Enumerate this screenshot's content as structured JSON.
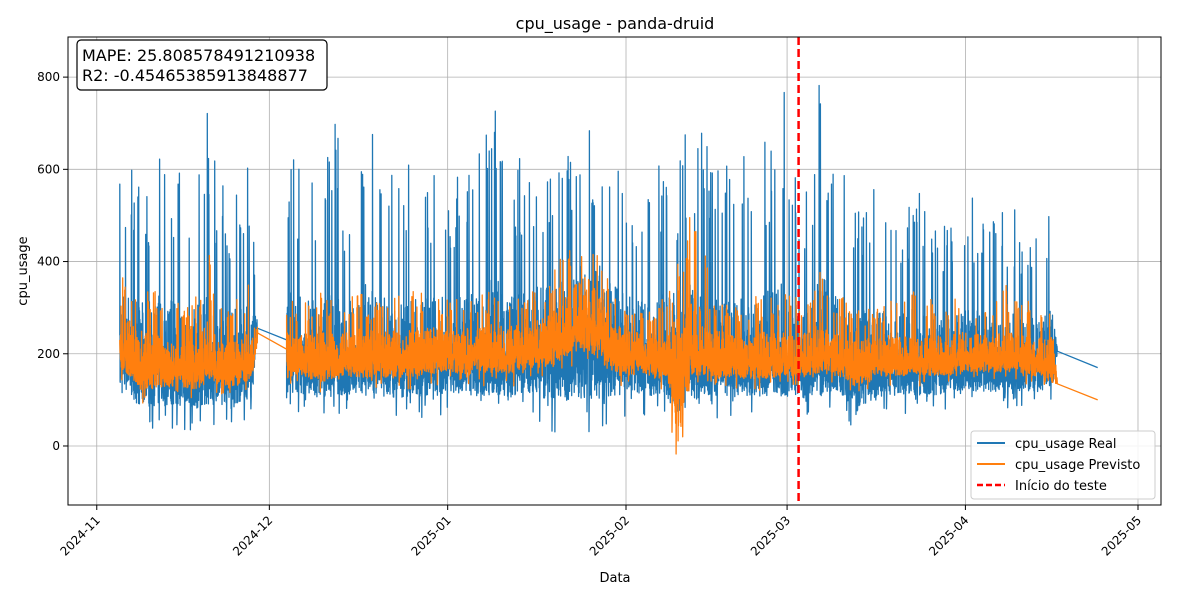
{
  "chart_data": {
    "type": "line",
    "title": "cpu_usage - panda-druid",
    "xlabel": "Data",
    "ylabel": "cpu_usage",
    "x_range": [
      "2024-10-27",
      "2025-05-05"
    ],
    "ylim": [
      -128,
      887
    ],
    "x_ticks": [
      "2024-11",
      "2024-12",
      "2025-01",
      "2025-02",
      "2025-03",
      "2025-04",
      "2025-05"
    ],
    "x_tick_dates": [
      "2024-11-01",
      "2024-12-01",
      "2025-01-01",
      "2025-02-01",
      "2025-03-01",
      "2025-04-01",
      "2025-05-01"
    ],
    "y_ticks": [
      0,
      200,
      400,
      600,
      800
    ],
    "grid": true,
    "legend_position": "bottom-right",
    "annotation": {
      "mape_label": "MAPE: 25.808578491210938",
      "r2_label": "R2: -0.45465385913848877"
    },
    "test_start": {
      "label": "Início do teste",
      "date": "2025-03-03",
      "color": "#ff0000"
    },
    "data_gaps": [
      [
        "2024-11-29",
        "2024-12-04"
      ],
      [
        "2025-04-17",
        "2025-04-24"
      ]
    ],
    "series": [
      {
        "name": "cpu_usage Real",
        "color": "#1f77b4",
        "note": "dense noisy series; approximate daily envelope (low, high, mean)",
        "points": [
          [
            "2024-11-05",
            60,
            580,
            240
          ],
          [
            "2024-11-07",
            40,
            600,
            230
          ],
          [
            "2024-11-09",
            30,
            560,
            210
          ],
          [
            "2024-11-11",
            30,
            610,
            220
          ],
          [
            "2024-11-13",
            30,
            670,
            215
          ],
          [
            "2024-11-15",
            40,
            600,
            200
          ],
          [
            "2024-11-17",
            30,
            560,
            190
          ],
          [
            "2024-11-19",
            30,
            620,
            200
          ],
          [
            "2024-11-20",
            40,
            740,
            210
          ],
          [
            "2024-11-22",
            40,
            600,
            200
          ],
          [
            "2024-11-24",
            50,
            540,
            190
          ],
          [
            "2024-11-26",
            50,
            680,
            200
          ],
          [
            "2024-11-28",
            60,
            585,
            210
          ],
          [
            "2024-11-29",
            240,
            300,
            270
          ],
          [
            "2024-12-04",
            70,
            640,
            230
          ],
          [
            "2024-12-06",
            70,
            620,
            220
          ],
          [
            "2024-12-08",
            60,
            600,
            215
          ],
          [
            "2024-12-10",
            60,
            590,
            210
          ],
          [
            "2024-12-12",
            60,
            750,
            220
          ],
          [
            "2024-12-14",
            60,
            580,
            215
          ],
          [
            "2024-12-16",
            70,
            620,
            220
          ],
          [
            "2024-12-18",
            60,
            790,
            225
          ],
          [
            "2024-12-20",
            60,
            630,
            220
          ],
          [
            "2024-12-22",
            60,
            600,
            215
          ],
          [
            "2024-12-24",
            60,
            580,
            210
          ],
          [
            "2024-12-26",
            60,
            650,
            215
          ],
          [
            "2024-12-28",
            60,
            600,
            220
          ],
          [
            "2024-12-30",
            60,
            620,
            225
          ],
          [
            "2025-01-01",
            70,
            580,
            220
          ],
          [
            "2025-01-03",
            60,
            610,
            215
          ],
          [
            "2025-01-05",
            60,
            680,
            220
          ],
          [
            "2025-01-07",
            60,
            620,
            225
          ],
          [
            "2025-01-09",
            60,
            830,
            230
          ],
          [
            "2025-01-11",
            60,
            600,
            220
          ],
          [
            "2025-01-13",
            60,
            640,
            225
          ],
          [
            "2025-01-15",
            60,
            620,
            230
          ],
          [
            "2025-01-17",
            50,
            640,
            235
          ],
          [
            "2025-01-19",
            30,
            600,
            240
          ],
          [
            "2025-01-21",
            30,
            710,
            245
          ],
          [
            "2025-01-23",
            30,
            680,
            260
          ],
          [
            "2025-01-25",
            30,
            700,
            280
          ],
          [
            "2025-01-27",
            30,
            690,
            270
          ],
          [
            "2025-01-29",
            40,
            640,
            250
          ],
          [
            "2025-01-31",
            60,
            600,
            230
          ],
          [
            "2025-02-02",
            70,
            580,
            225
          ],
          [
            "2025-02-04",
            60,
            560,
            220
          ],
          [
            "2025-02-06",
            60,
            600,
            215
          ],
          [
            "2025-02-08",
            60,
            640,
            220
          ],
          [
            "2025-02-10",
            0,
            630,
            210
          ],
          [
            "2025-02-12",
            30,
            700,
            220
          ],
          [
            "2025-02-14",
            60,
            740,
            225
          ],
          [
            "2025-02-16",
            60,
            600,
            220
          ],
          [
            "2025-02-18",
            60,
            620,
            215
          ],
          [
            "2025-02-20",
            60,
            580,
            210
          ],
          [
            "2025-02-22",
            60,
            670,
            215
          ],
          [
            "2025-02-24",
            60,
            640,
            220
          ],
          [
            "2025-02-26",
            60,
            700,
            215
          ],
          [
            "2025-02-28",
            60,
            760,
            220
          ],
          [
            "2025-03-01",
            60,
            805,
            230
          ],
          [
            "2025-03-03",
            60,
            500,
            210
          ],
          [
            "2025-03-05",
            60,
            640,
            215
          ],
          [
            "2025-03-07",
            60,
            840,
            220
          ],
          [
            "2025-03-09",
            70,
            700,
            220
          ],
          [
            "2025-03-11",
            60,
            600,
            210
          ],
          [
            "2025-03-13",
            10,
            500,
            190
          ],
          [
            "2025-03-15",
            50,
            590,
            195
          ],
          [
            "2025-03-17",
            60,
            560,
            200
          ],
          [
            "2025-03-19",
            70,
            530,
            200
          ],
          [
            "2025-03-21",
            70,
            520,
            200
          ],
          [
            "2025-03-23",
            70,
            590,
            205
          ],
          [
            "2025-03-25",
            70,
            560,
            200
          ],
          [
            "2025-03-27",
            70,
            480,
            200
          ],
          [
            "2025-03-29",
            70,
            500,
            205
          ],
          [
            "2025-03-31",
            80,
            520,
            205
          ],
          [
            "2025-04-02",
            80,
            540,
            210
          ],
          [
            "2025-04-04",
            80,
            520,
            205
          ],
          [
            "2025-04-06",
            80,
            500,
            205
          ],
          [
            "2025-04-08",
            80,
            540,
            205
          ],
          [
            "2025-04-10",
            80,
            520,
            200
          ],
          [
            "2025-04-12",
            80,
            500,
            200
          ],
          [
            "2025-04-14",
            80,
            520,
            200
          ],
          [
            "2025-04-16",
            100,
            555,
            210
          ],
          [
            "2025-04-17",
            200,
            230,
            215
          ],
          [
            "2025-04-24",
            130,
            290,
            170
          ]
        ]
      },
      {
        "name": "cpu_usage Previsto",
        "color": "#ff7f0e",
        "note": "dense noisy series; approximate daily envelope (low, high, mean)",
        "points": [
          [
            "2024-11-05",
            140,
            360,
            230
          ],
          [
            "2024-11-07",
            110,
            380,
            220
          ],
          [
            "2024-11-09",
            90,
            330,
            200
          ],
          [
            "2024-11-11",
            90,
            340,
            205
          ],
          [
            "2024-11-13",
            100,
            300,
            195
          ],
          [
            "2024-11-15",
            100,
            320,
            190
          ],
          [
            "2024-11-17",
            90,
            300,
            185
          ],
          [
            "2024-11-19",
            100,
            340,
            190
          ],
          [
            "2024-11-20",
            120,
            455,
            210
          ],
          [
            "2024-11-22",
            110,
            320,
            190
          ],
          [
            "2024-11-24",
            100,
            300,
            185
          ],
          [
            "2024-11-26",
            110,
            330,
            190
          ],
          [
            "2024-11-28",
            120,
            385,
            200
          ],
          [
            "2024-11-29",
            230,
            280,
            255
          ],
          [
            "2024-12-04",
            120,
            330,
            210
          ],
          [
            "2024-12-06",
            130,
            300,
            210
          ],
          [
            "2024-12-08",
            120,
            320,
            205
          ],
          [
            "2024-12-10",
            110,
            340,
            205
          ],
          [
            "2024-12-12",
            120,
            320,
            210
          ],
          [
            "2024-12-14",
            130,
            330,
            215
          ],
          [
            "2024-12-16",
            120,
            340,
            215
          ],
          [
            "2024-12-18",
            120,
            320,
            210
          ],
          [
            "2024-12-20",
            120,
            330,
            215
          ],
          [
            "2024-12-22",
            120,
            320,
            210
          ],
          [
            "2024-12-24",
            120,
            330,
            210
          ],
          [
            "2024-12-26",
            120,
            340,
            215
          ],
          [
            "2024-12-28",
            130,
            330,
            215
          ],
          [
            "2024-12-30",
            130,
            340,
            220
          ],
          [
            "2025-01-01",
            130,
            320,
            215
          ],
          [
            "2025-01-03",
            130,
            320,
            215
          ],
          [
            "2025-01-05",
            130,
            330,
            220
          ],
          [
            "2025-01-07",
            130,
            330,
            220
          ],
          [
            "2025-01-09",
            130,
            340,
            225
          ],
          [
            "2025-01-11",
            130,
            330,
            220
          ],
          [
            "2025-01-13",
            130,
            330,
            225
          ],
          [
            "2025-01-15",
            140,
            340,
            230
          ],
          [
            "2025-01-17",
            140,
            360,
            235
          ],
          [
            "2025-01-19",
            140,
            380,
            240
          ],
          [
            "2025-01-21",
            150,
            420,
            260
          ],
          [
            "2025-01-23",
            160,
            480,
            290
          ],
          [
            "2025-01-25",
            170,
            500,
            310
          ],
          [
            "2025-01-27",
            150,
            450,
            280
          ],
          [
            "2025-01-29",
            130,
            360,
            240
          ],
          [
            "2025-01-31",
            130,
            320,
            225
          ],
          [
            "2025-02-02",
            130,
            310,
            215
          ],
          [
            "2025-02-04",
            120,
            300,
            210
          ],
          [
            "2025-02-06",
            120,
            300,
            205
          ],
          [
            "2025-02-08",
            120,
            330,
            210
          ],
          [
            "2025-02-10",
            -80,
            400,
            200
          ],
          [
            "2025-02-12",
            100,
            545,
            230
          ],
          [
            "2025-02-14",
            120,
            480,
            230
          ],
          [
            "2025-02-16",
            120,
            330,
            210
          ],
          [
            "2025-02-18",
            120,
            320,
            210
          ],
          [
            "2025-02-20",
            120,
            310,
            205
          ],
          [
            "2025-02-22",
            120,
            320,
            205
          ],
          [
            "2025-02-24",
            120,
            330,
            210
          ],
          [
            "2025-02-26",
            120,
            320,
            205
          ],
          [
            "2025-02-28",
            130,
            340,
            210
          ],
          [
            "2025-03-01",
            130,
            330,
            210
          ],
          [
            "2025-03-03",
            120,
            320,
            205
          ],
          [
            "2025-03-05",
            130,
            340,
            210
          ],
          [
            "2025-03-07",
            130,
            430,
            215
          ],
          [
            "2025-03-09",
            130,
            340,
            210
          ],
          [
            "2025-03-11",
            120,
            320,
            200
          ],
          [
            "2025-03-13",
            100,
            290,
            190
          ],
          [
            "2025-03-15",
            110,
            310,
            195
          ],
          [
            "2025-03-17",
            120,
            320,
            200
          ],
          [
            "2025-03-19",
            130,
            330,
            205
          ],
          [
            "2025-03-21",
            130,
            320,
            205
          ],
          [
            "2025-03-23",
            130,
            360,
            210
          ],
          [
            "2025-03-25",
            130,
            330,
            205
          ],
          [
            "2025-03-27",
            130,
            320,
            205
          ],
          [
            "2025-03-29",
            130,
            320,
            205
          ],
          [
            "2025-03-31",
            140,
            330,
            210
          ],
          [
            "2025-04-02",
            140,
            330,
            210
          ],
          [
            "2025-04-04",
            140,
            320,
            210
          ],
          [
            "2025-04-06",
            140,
            320,
            205
          ],
          [
            "2025-04-08",
            140,
            350,
            210
          ],
          [
            "2025-04-10",
            140,
            330,
            205
          ],
          [
            "2025-04-12",
            130,
            320,
            200
          ],
          [
            "2025-04-14",
            130,
            320,
            200
          ],
          [
            "2025-04-16",
            110,
            300,
            200
          ],
          [
            "2025-04-17",
            130,
            160,
            145
          ],
          [
            "2025-04-24",
            95,
            115,
            100
          ]
        ]
      }
    ]
  }
}
